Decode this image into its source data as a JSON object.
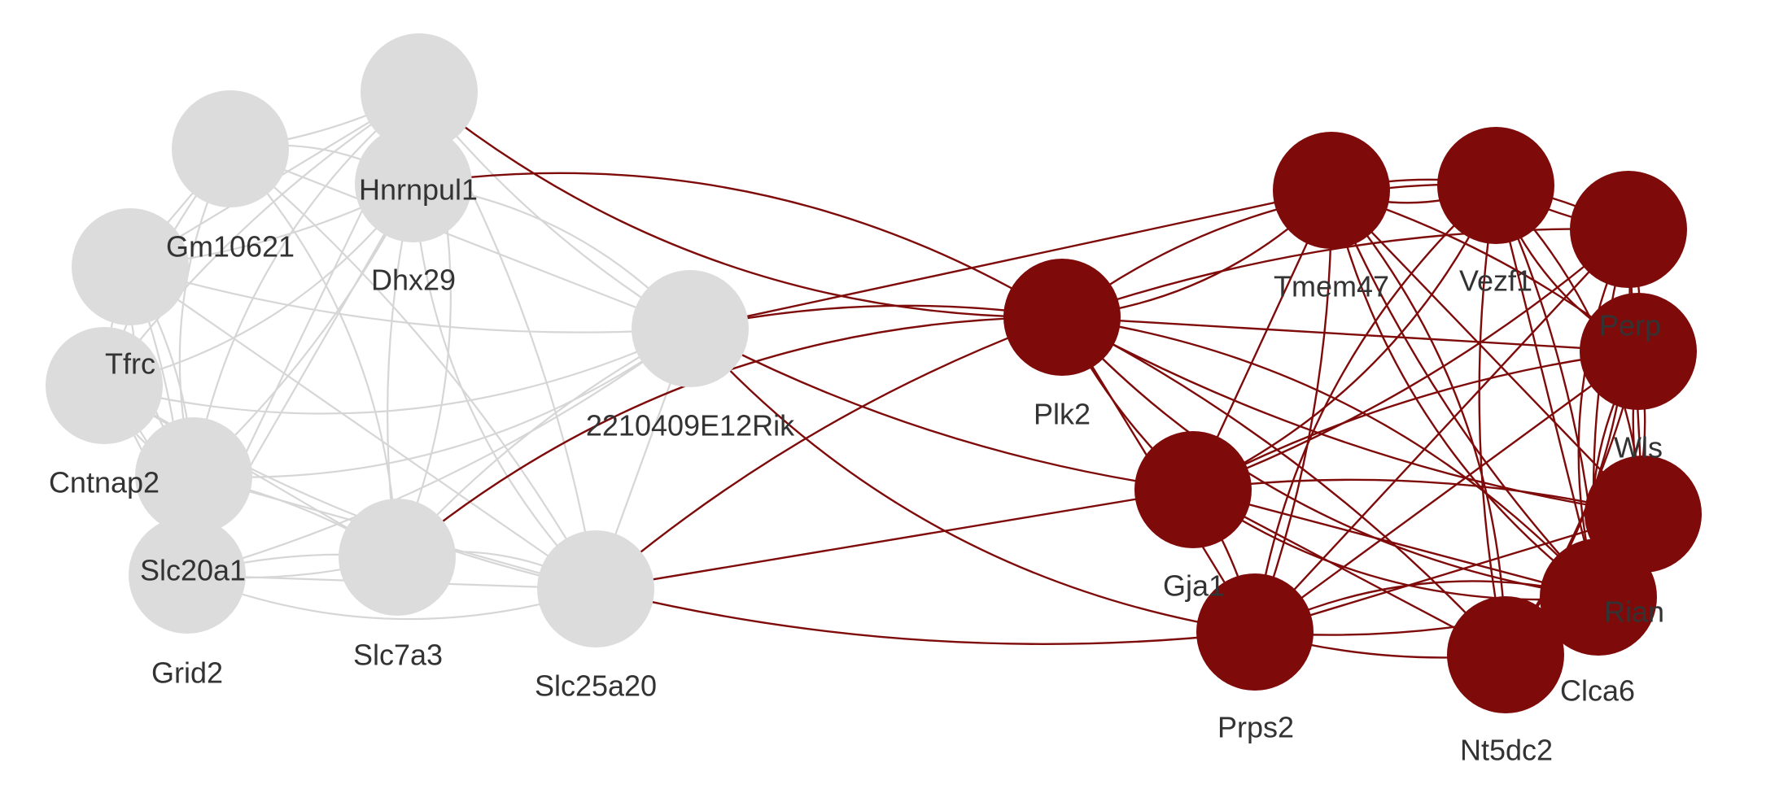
{
  "colors": {
    "group_a_node": "#dcdcdc",
    "group_a_edge": "#d6d6d6",
    "group_b_node": "#7e0a0a",
    "group_b_edge": "#7e0a0a",
    "label": "#333333"
  },
  "nodes": [
    {
      "id": "n_top",
      "label": "",
      "group": "a"
    },
    {
      "id": "hnrnpul1",
      "label": "Hnrnpul1",
      "group": "a"
    },
    {
      "id": "gm10621",
      "label": "Gm10621",
      "group": "a"
    },
    {
      "id": "dhx29",
      "label": "Dhx29",
      "group": "a"
    },
    {
      "id": "tfrc",
      "label": "Tfrc",
      "group": "a"
    },
    {
      "id": "cntnap2",
      "label": "Cntnap2",
      "group": "a"
    },
    {
      "id": "slc20a1",
      "label": "Slc20a1",
      "group": "a"
    },
    {
      "id": "grid2",
      "label": "Grid2",
      "group": "a"
    },
    {
      "id": "slc7a3",
      "label": "Slc7a3",
      "group": "a"
    },
    {
      "id": "slc25a20",
      "label": "Slc25a20",
      "group": "a"
    },
    {
      "id": "rik2210409e12",
      "label": "2210409E12Rik",
      "group": "a"
    },
    {
      "id": "plk2",
      "label": "Plk2",
      "group": "b"
    },
    {
      "id": "tmem47",
      "label": "Tmem47",
      "group": "b"
    },
    {
      "id": "vezf1",
      "label": "Vezf1",
      "group": "b"
    },
    {
      "id": "n_right_top",
      "label": "",
      "group": "b"
    },
    {
      "id": "perp",
      "label": "Perp",
      "group": "b"
    },
    {
      "id": "wls",
      "label": "Wls",
      "group": "b"
    },
    {
      "id": "rian",
      "label": "Rian",
      "group": "b"
    },
    {
      "id": "clca6",
      "label": "Clca6",
      "group": "b"
    },
    {
      "id": "nt5dc2",
      "label": "Nt5dc2",
      "group": "b"
    },
    {
      "id": "prps2",
      "label": "Prps2",
      "group": "b"
    },
    {
      "id": "gja1",
      "label": "Gja1",
      "group": "b"
    }
  ],
  "edges": [
    [
      "n_top",
      "hnrnpul1"
    ],
    [
      "n_top",
      "gm10621"
    ],
    [
      "n_top",
      "dhx29"
    ],
    [
      "n_top",
      "tfrc"
    ],
    [
      "n_top",
      "cntnap2"
    ],
    [
      "n_top",
      "slc7a3"
    ],
    [
      "n_top",
      "slc25a20"
    ],
    [
      "n_top",
      "grid2"
    ],
    [
      "n_top",
      "rik2210409e12"
    ],
    [
      "hnrnpul1",
      "gm10621"
    ],
    [
      "hnrnpul1",
      "tfrc"
    ],
    [
      "hnrnpul1",
      "cntnap2"
    ],
    [
      "hnrnpul1",
      "slc20a1"
    ],
    [
      "hnrnpul1",
      "slc7a3"
    ],
    [
      "hnrnpul1",
      "slc25a20"
    ],
    [
      "hnrnpul1",
      "rik2210409e12"
    ],
    [
      "hnrnpul1",
      "dhx29"
    ],
    [
      "gm10621",
      "dhx29"
    ],
    [
      "gm10621",
      "tfrc"
    ],
    [
      "gm10621",
      "cntnap2"
    ],
    [
      "gm10621",
      "slc7a3"
    ],
    [
      "gm10621",
      "slc25a20"
    ],
    [
      "gm10621",
      "rik2210409e12"
    ],
    [
      "dhx29",
      "tfrc"
    ],
    [
      "dhx29",
      "cntnap2"
    ],
    [
      "dhx29",
      "slc20a1"
    ],
    [
      "dhx29",
      "grid2"
    ],
    [
      "dhx29",
      "slc25a20"
    ],
    [
      "dhx29",
      "rik2210409e12"
    ],
    [
      "tfrc",
      "cntnap2"
    ],
    [
      "tfrc",
      "slc20a1"
    ],
    [
      "tfrc",
      "grid2"
    ],
    [
      "tfrc",
      "slc7a3"
    ],
    [
      "tfrc",
      "slc25a20"
    ],
    [
      "tfrc",
      "rik2210409e12"
    ],
    [
      "cntnap2",
      "slc20a1"
    ],
    [
      "cntnap2",
      "slc7a3"
    ],
    [
      "cntnap2",
      "slc25a20"
    ],
    [
      "cntnap2",
      "grid2"
    ],
    [
      "cntnap2",
      "rik2210409e12"
    ],
    [
      "slc20a1",
      "grid2"
    ],
    [
      "slc20a1",
      "slc7a3"
    ],
    [
      "slc20a1",
      "slc25a20"
    ],
    [
      "grid2",
      "slc7a3"
    ],
    [
      "grid2",
      "slc25a20"
    ],
    [
      "slc7a3",
      "slc25a20"
    ],
    [
      "slc7a3",
      "rik2210409e12"
    ],
    [
      "slc25a20",
      "rik2210409e12"
    ],
    [
      "slc20a1",
      "rik2210409e12"
    ],
    [
      "n_top",
      "plk2"
    ],
    [
      "hnrnpul1",
      "plk2"
    ],
    [
      "rik2210409e12",
      "plk2"
    ],
    [
      "rik2210409e12",
      "tmem47"
    ],
    [
      "rik2210409e12",
      "gja1"
    ],
    [
      "rik2210409e12",
      "prps2"
    ],
    [
      "slc7a3",
      "plk2"
    ],
    [
      "slc25a20",
      "plk2"
    ],
    [
      "slc25a20",
      "gja1"
    ],
    [
      "slc25a20",
      "prps2"
    ],
    [
      "plk2",
      "tmem47"
    ],
    [
      "plk2",
      "vezf1"
    ],
    [
      "plk2",
      "n_right_top"
    ],
    [
      "plk2",
      "perp"
    ],
    [
      "plk2",
      "wls"
    ],
    [
      "plk2",
      "rian"
    ],
    [
      "plk2",
      "clca6"
    ],
    [
      "plk2",
      "nt5dc2"
    ],
    [
      "plk2",
      "prps2"
    ],
    [
      "plk2",
      "gja1"
    ],
    [
      "tmem47",
      "vezf1"
    ],
    [
      "tmem47",
      "n_right_top"
    ],
    [
      "tmem47",
      "perp"
    ],
    [
      "tmem47",
      "wls"
    ],
    [
      "tmem47",
      "rian"
    ],
    [
      "tmem47",
      "clca6"
    ],
    [
      "tmem47",
      "nt5dc2"
    ],
    [
      "tmem47",
      "prps2"
    ],
    [
      "tmem47",
      "gja1"
    ],
    [
      "vezf1",
      "n_right_top"
    ],
    [
      "vezf1",
      "perp"
    ],
    [
      "vezf1",
      "wls"
    ],
    [
      "vezf1",
      "rian"
    ],
    [
      "vezf1",
      "clca6"
    ],
    [
      "vezf1",
      "nt5dc2"
    ],
    [
      "vezf1",
      "prps2"
    ],
    [
      "vezf1",
      "gja1"
    ],
    [
      "n_right_top",
      "perp"
    ],
    [
      "n_right_top",
      "wls"
    ],
    [
      "n_right_top",
      "rian"
    ],
    [
      "n_right_top",
      "clca6"
    ],
    [
      "n_right_top",
      "nt5dc2"
    ],
    [
      "n_right_top",
      "gja1"
    ],
    [
      "n_right_top",
      "prps2"
    ],
    [
      "perp",
      "wls"
    ],
    [
      "perp",
      "rian"
    ],
    [
      "perp",
      "clca6"
    ],
    [
      "perp",
      "nt5dc2"
    ],
    [
      "perp",
      "prps2"
    ],
    [
      "perp",
      "gja1"
    ],
    [
      "wls",
      "rian"
    ],
    [
      "wls",
      "clca6"
    ],
    [
      "wls",
      "nt5dc2"
    ],
    [
      "wls",
      "prps2"
    ],
    [
      "wls",
      "gja1"
    ],
    [
      "rian",
      "clca6"
    ],
    [
      "rian",
      "nt5dc2"
    ],
    [
      "rian",
      "prps2"
    ],
    [
      "rian",
      "gja1"
    ],
    [
      "clca6",
      "nt5dc2"
    ],
    [
      "clca6",
      "prps2"
    ],
    [
      "clca6",
      "gja1"
    ],
    [
      "nt5dc2",
      "prps2"
    ],
    [
      "nt5dc2",
      "gja1"
    ],
    [
      "prps2",
      "gja1"
    ]
  ]
}
